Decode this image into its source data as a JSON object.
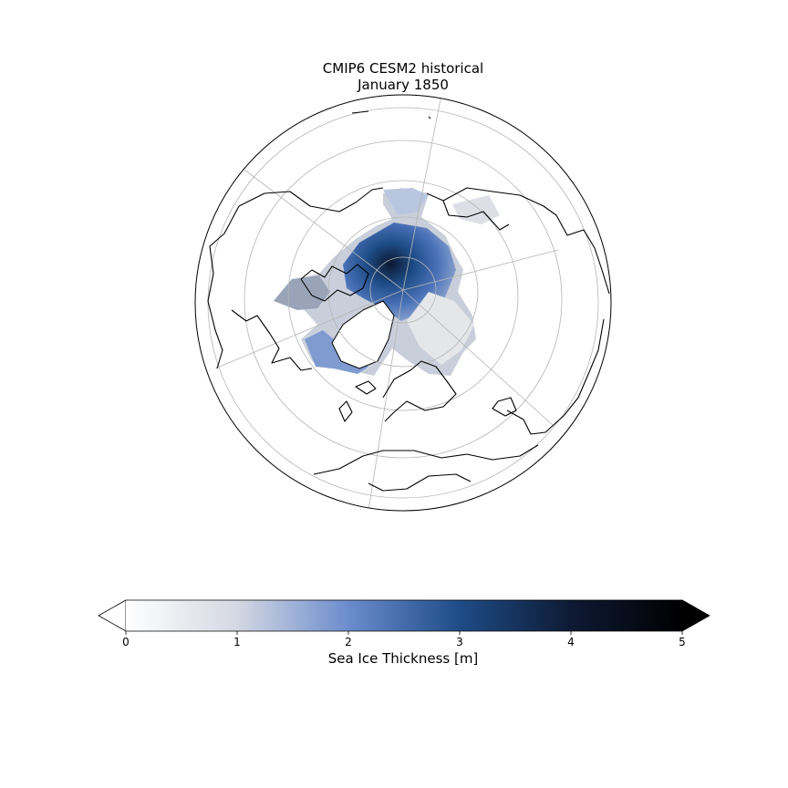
{
  "figure": {
    "title_line1": "CMIP6 CESM2 historical",
    "title_line2": "January 1850"
  },
  "map": {
    "projection": "north-polar-stereographic",
    "variable": "sea ice thickness",
    "graticule_latitudes": [
      80,
      70,
      60,
      50,
      40
    ],
    "graticule_longitudes": [
      0,
      60,
      120,
      180,
      240,
      300
    ]
  },
  "colorbar": {
    "label": "Sea Ice Thickness [m]",
    "min": 0,
    "max": 5,
    "extend": "both",
    "tick_values": [
      0,
      1,
      2,
      3,
      4,
      5
    ],
    "tick_labels": [
      "0",
      "1",
      "2",
      "3",
      "4",
      "5"
    ],
    "colors": [
      "#ffffff",
      "#d4d8e2",
      "#6b8ccd",
      "#1e4c86",
      "#0e1a34",
      "#000000"
    ]
  }
}
